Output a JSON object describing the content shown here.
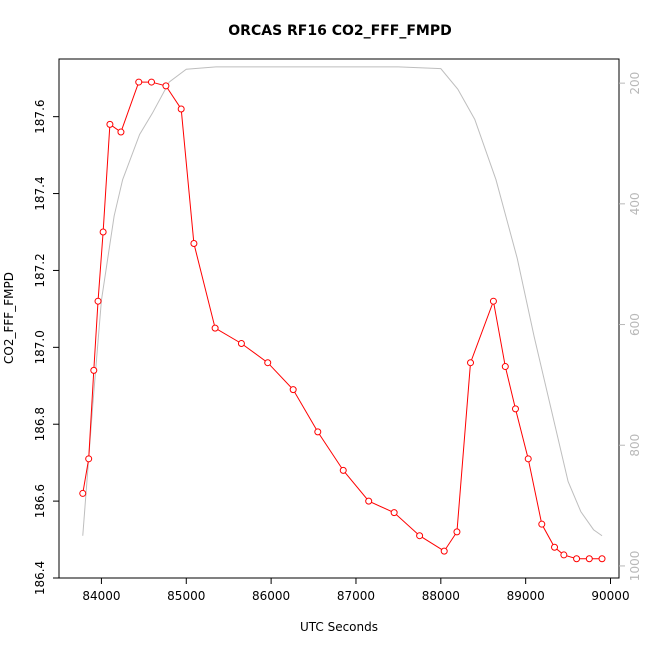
{
  "chart_data": {
    "type": "line",
    "title": "ORCAS RF16 CO2_FFF_FMPD",
    "xlabel": "UTC Seconds",
    "ylabel": "CO2_FFF_FMPD",
    "xlim": [
      83500,
      90100
    ],
    "ylim": [
      186.4,
      187.75
    ],
    "y2lim": [
      1020,
      160
    ],
    "x_ticks": [
      84000,
      85000,
      86000,
      87000,
      88000,
      89000,
      90000
    ],
    "y_ticks": [
      186.4,
      186.6,
      186.8,
      187.0,
      187.2,
      187.4,
      187.6
    ],
    "y2_ticks": [
      200,
      400,
      600,
      800,
      1000
    ],
    "series": [
      {
        "axis": "left",
        "color": "#ff0000",
        "marker": "open-circle",
        "x": [
          83780,
          83850,
          83910,
          83960,
          84020,
          84100,
          84230,
          84440,
          84590,
          84760,
          84940,
          85090,
          85340,
          85650,
          85960,
          86260,
          86550,
          86850,
          87150,
          87450,
          87750,
          88040,
          88190,
          88350,
          88620,
          88760,
          88880,
          89030,
          89190,
          89340,
          89450,
          89600,
          89750,
          89900
        ],
        "y": [
          186.62,
          186.71,
          186.94,
          187.12,
          187.3,
          187.58,
          187.56,
          187.69,
          187.69,
          187.68,
          187.62,
          187.27,
          187.05,
          187.01,
          186.96,
          186.89,
          186.78,
          186.68,
          186.6,
          186.57,
          186.51,
          186.47,
          186.52,
          186.96,
          187.12,
          186.95,
          186.84,
          186.71,
          186.54,
          186.48,
          186.46,
          186.45,
          186.45,
          186.45
        ]
      },
      {
        "axis": "right",
        "color": "#bebebe",
        "marker": "none",
        "x": [
          83780,
          83900,
          84000,
          84150,
          84250,
          84450,
          84600,
          84800,
          85000,
          85350,
          85600,
          86000,
          86500,
          87000,
          87500,
          88000,
          88200,
          88400,
          88650,
          88900,
          89100,
          89300,
          89500,
          89650,
          89800,
          89900
        ],
        "y": [
          950,
          730,
          560,
          420,
          360,
          285,
          250,
          198,
          177,
          173,
          173,
          173,
          173,
          173,
          173,
          176,
          210,
          260,
          360,
          490,
          620,
          740,
          860,
          910,
          940,
          950
        ]
      }
    ],
    "grid": false,
    "legend": "none"
  }
}
